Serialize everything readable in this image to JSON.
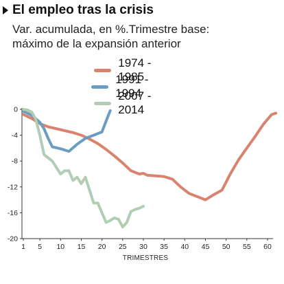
{
  "header": {
    "title": "El empleo tras la crisis",
    "subtitle_line1": "Var.  acumulada, en %.Trimestre base:",
    "subtitle_line2": "máximo de la expansión anterior"
  },
  "chart_data": {
    "type": "line",
    "title": "El empleo tras la crisis",
    "subtitle": "Var.  acumulada, en %.Trimestre base: máximo de la expansión anterior",
    "xlabel": "TRIMESTRES",
    "ylabel": "",
    "xlim": [
      1,
      62
    ],
    "ylim": [
      -20,
      0
    ],
    "xticks": [
      1,
      5,
      10,
      15,
      20,
      25,
      30,
      35,
      40,
      45,
      50,
      55,
      60
    ],
    "yticks": [
      0,
      -4,
      -8,
      -12,
      -16,
      -20
    ],
    "grid": false,
    "legend_position": "top",
    "series": [
      {
        "name": "1974 - 1985",
        "color": "#d9836f",
        "x": [
          1,
          3,
          5,
          7,
          9,
          11,
          13,
          15,
          17,
          19,
          21,
          23,
          25,
          27,
          29,
          30,
          31,
          33,
          35,
          37,
          39,
          41,
          43,
          45,
          47,
          49,
          51,
          53,
          55,
          57,
          59,
          61,
          62
        ],
        "y": [
          -0.8,
          -1.4,
          -2.2,
          -2.7,
          -3.0,
          -3.3,
          -3.6,
          -4.0,
          -4.6,
          -5.3,
          -6.2,
          -7.2,
          -8.3,
          -9.5,
          -10.0,
          -9.9,
          -10.2,
          -10.3,
          -10.4,
          -10.8,
          -12.0,
          -13.0,
          -13.5,
          -14.0,
          -13.2,
          -12.5,
          -10.0,
          -7.8,
          -6.0,
          -4.2,
          -2.3,
          -0.8,
          -0.6
        ]
      },
      {
        "name": "1991 - 1994",
        "color": "#6a9dc1",
        "x": [
          1,
          3,
          5,
          6,
          7,
          8,
          10,
          12,
          14,
          16,
          18,
          20,
          21,
          22
        ],
        "y": [
          -0.3,
          -0.9,
          -2.0,
          -3.0,
          -4.5,
          -5.8,
          -6.1,
          -6.5,
          -5.4,
          -4.5,
          -4.0,
          -3.5,
          -1.8,
          -0.2
        ]
      },
      {
        "name": "2007 - 2014",
        "color": "#b1cdb3",
        "x": [
          1,
          2,
          3,
          4,
          5,
          6,
          7,
          8,
          9,
          10,
          11,
          12,
          13,
          14,
          15,
          16,
          17,
          18,
          19,
          20,
          21,
          22,
          23,
          24,
          25,
          26,
          27,
          28,
          29,
          30
        ],
        "y": [
          0.0,
          -0.1,
          -0.4,
          -1.5,
          -4.0,
          -7.0,
          -7.5,
          -8.0,
          -9.0,
          -10.0,
          -9.5,
          -9.5,
          -11.0,
          -10.5,
          -11.5,
          -10.5,
          -12.5,
          -14.5,
          -14.5,
          -16.0,
          -17.5,
          -17.2,
          -16.8,
          -17.0,
          -18.2,
          -17.5,
          -15.8,
          -15.5,
          -15.3,
          -15.0
        ]
      }
    ]
  }
}
